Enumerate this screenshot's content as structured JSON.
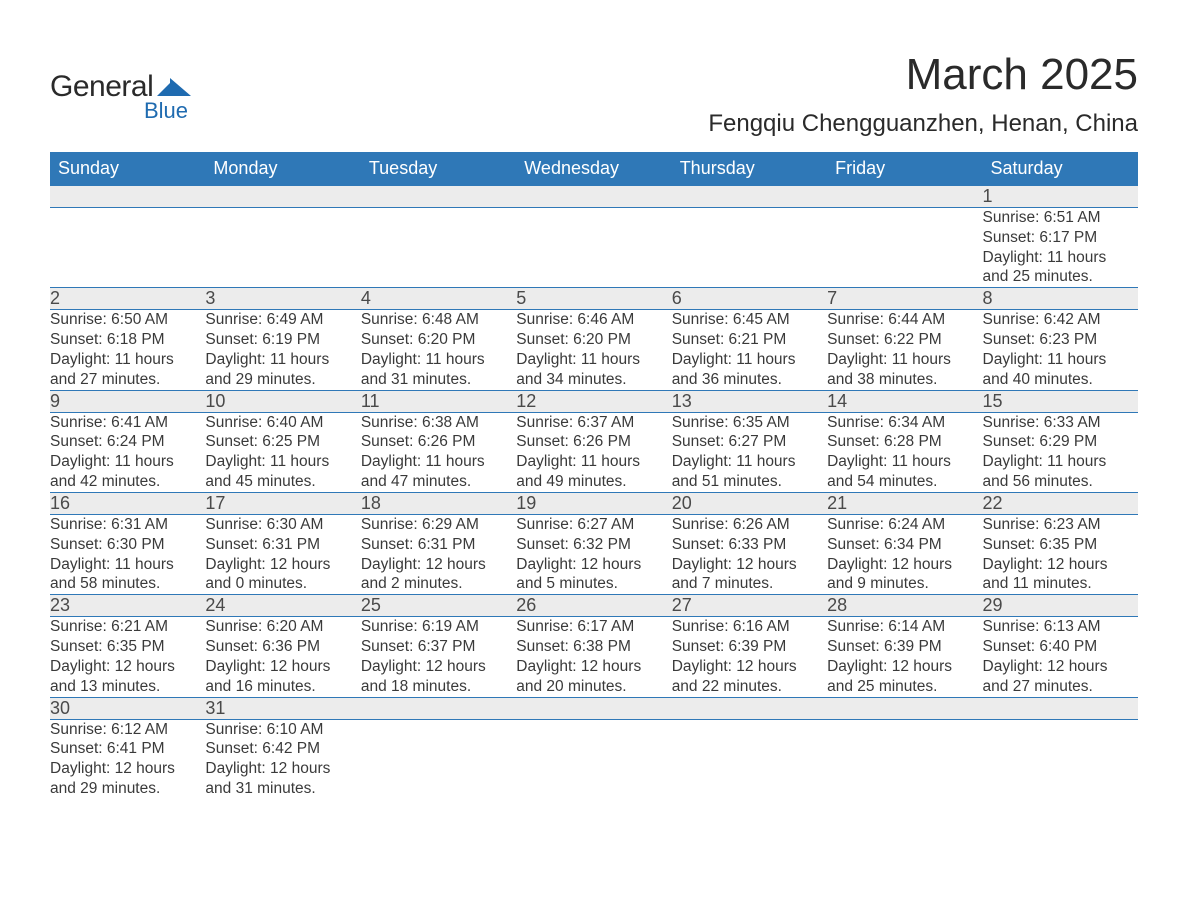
{
  "brand": {
    "name_a": "General",
    "name_b": "Blue"
  },
  "title": "March 2025",
  "location": "Fengqiu Chengguanzhen, Henan, China",
  "colors": {
    "header_bg": "#2f78b7",
    "header_text": "#ffffff",
    "daynum_bg": "#ececec",
    "border": "#2f78b7",
    "body_text": "#3a3a3a",
    "brand_blue": "#1f6bb0"
  },
  "weekdays": [
    "Sunday",
    "Monday",
    "Tuesday",
    "Wednesday",
    "Thursday",
    "Friday",
    "Saturday"
  ],
  "weeks": [
    [
      null,
      null,
      null,
      null,
      null,
      null,
      {
        "n": "1",
        "sr": "6:51 AM",
        "ss": "6:17 PM",
        "dh": "11",
        "dm": "25"
      }
    ],
    [
      {
        "n": "2",
        "sr": "6:50 AM",
        "ss": "6:18 PM",
        "dh": "11",
        "dm": "27"
      },
      {
        "n": "3",
        "sr": "6:49 AM",
        "ss": "6:19 PM",
        "dh": "11",
        "dm": "29"
      },
      {
        "n": "4",
        "sr": "6:48 AM",
        "ss": "6:20 PM",
        "dh": "11",
        "dm": "31"
      },
      {
        "n": "5",
        "sr": "6:46 AM",
        "ss": "6:20 PM",
        "dh": "11",
        "dm": "34"
      },
      {
        "n": "6",
        "sr": "6:45 AM",
        "ss": "6:21 PM",
        "dh": "11",
        "dm": "36"
      },
      {
        "n": "7",
        "sr": "6:44 AM",
        "ss": "6:22 PM",
        "dh": "11",
        "dm": "38"
      },
      {
        "n": "8",
        "sr": "6:42 AM",
        "ss": "6:23 PM",
        "dh": "11",
        "dm": "40"
      }
    ],
    [
      {
        "n": "9",
        "sr": "6:41 AM",
        "ss": "6:24 PM",
        "dh": "11",
        "dm": "42"
      },
      {
        "n": "10",
        "sr": "6:40 AM",
        "ss": "6:25 PM",
        "dh": "11",
        "dm": "45"
      },
      {
        "n": "11",
        "sr": "6:38 AM",
        "ss": "6:26 PM",
        "dh": "11",
        "dm": "47"
      },
      {
        "n": "12",
        "sr": "6:37 AM",
        "ss": "6:26 PM",
        "dh": "11",
        "dm": "49"
      },
      {
        "n": "13",
        "sr": "6:35 AM",
        "ss": "6:27 PM",
        "dh": "11",
        "dm": "51"
      },
      {
        "n": "14",
        "sr": "6:34 AM",
        "ss": "6:28 PM",
        "dh": "11",
        "dm": "54"
      },
      {
        "n": "15",
        "sr": "6:33 AM",
        "ss": "6:29 PM",
        "dh": "11",
        "dm": "56"
      }
    ],
    [
      {
        "n": "16",
        "sr": "6:31 AM",
        "ss": "6:30 PM",
        "dh": "11",
        "dm": "58"
      },
      {
        "n": "17",
        "sr": "6:30 AM",
        "ss": "6:31 PM",
        "dh": "12",
        "dm": "0"
      },
      {
        "n": "18",
        "sr": "6:29 AM",
        "ss": "6:31 PM",
        "dh": "12",
        "dm": "2"
      },
      {
        "n": "19",
        "sr": "6:27 AM",
        "ss": "6:32 PM",
        "dh": "12",
        "dm": "5"
      },
      {
        "n": "20",
        "sr": "6:26 AM",
        "ss": "6:33 PM",
        "dh": "12",
        "dm": "7"
      },
      {
        "n": "21",
        "sr": "6:24 AM",
        "ss": "6:34 PM",
        "dh": "12",
        "dm": "9"
      },
      {
        "n": "22",
        "sr": "6:23 AM",
        "ss": "6:35 PM",
        "dh": "12",
        "dm": "11"
      }
    ],
    [
      {
        "n": "23",
        "sr": "6:21 AM",
        "ss": "6:35 PM",
        "dh": "12",
        "dm": "13"
      },
      {
        "n": "24",
        "sr": "6:20 AM",
        "ss": "6:36 PM",
        "dh": "12",
        "dm": "16"
      },
      {
        "n": "25",
        "sr": "6:19 AM",
        "ss": "6:37 PM",
        "dh": "12",
        "dm": "18"
      },
      {
        "n": "26",
        "sr": "6:17 AM",
        "ss": "6:38 PM",
        "dh": "12",
        "dm": "20"
      },
      {
        "n": "27",
        "sr": "6:16 AM",
        "ss": "6:39 PM",
        "dh": "12",
        "dm": "22"
      },
      {
        "n": "28",
        "sr": "6:14 AM",
        "ss": "6:39 PM",
        "dh": "12",
        "dm": "25"
      },
      {
        "n": "29",
        "sr": "6:13 AM",
        "ss": "6:40 PM",
        "dh": "12",
        "dm": "27"
      }
    ],
    [
      {
        "n": "30",
        "sr": "6:12 AM",
        "ss": "6:41 PM",
        "dh": "12",
        "dm": "29"
      },
      {
        "n": "31",
        "sr": "6:10 AM",
        "ss": "6:42 PM",
        "dh": "12",
        "dm": "31"
      },
      null,
      null,
      null,
      null,
      null
    ]
  ],
  "labels": {
    "sunrise": "Sunrise: ",
    "sunset": "Sunset: ",
    "daylight_a": "Daylight: ",
    "hours": " hours",
    "and": "and ",
    "minutes": " minutes."
  }
}
